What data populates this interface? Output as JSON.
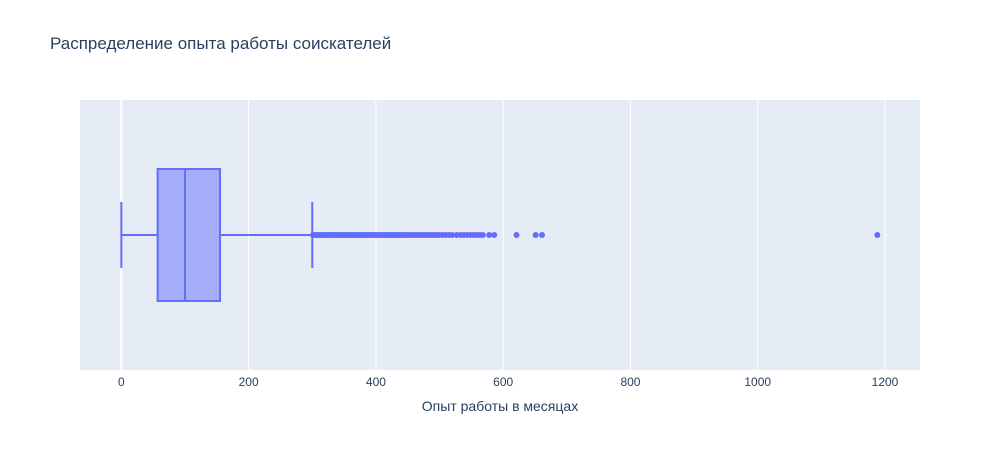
{
  "chart_data": {
    "type": "box",
    "title": "Распределение опыта работы соискателей",
    "xlabel": "Опыт работы в месяцах",
    "ylabel": "",
    "orientation": "horizontal",
    "xlim": [
      -65,
      1255
    ],
    "x_ticks": [
      0,
      200,
      400,
      600,
      800,
      1000,
      1200
    ],
    "x_tick_labels": [
      "0",
      "200",
      "400",
      "600",
      "800",
      "1000",
      "1200"
    ],
    "grid": true,
    "box": {
      "min": 0,
      "q1": 57,
      "median": 100,
      "q3": 155,
      "upper_fence": 300
    },
    "outliers": [
      301,
      304,
      307,
      310,
      313,
      316,
      319,
      322,
      325,
      328,
      331,
      334,
      337,
      340,
      343,
      346,
      349,
      352,
      355,
      358,
      361,
      364,
      367,
      370,
      373,
      376,
      379,
      382,
      385,
      388,
      391,
      394,
      397,
      400,
      403,
      406,
      409,
      412,
      415,
      418,
      421,
      424,
      427,
      430,
      433,
      436,
      439,
      442,
      445,
      448,
      452,
      456,
      460,
      464,
      468,
      472,
      476,
      480,
      484,
      488,
      492,
      496,
      500,
      505,
      510,
      515,
      520,
      527,
      533,
      538,
      543,
      548,
      553,
      558,
      563,
      568,
      578,
      586,
      621,
      651,
      661,
      1188
    ],
    "colors": {
      "box_fill": "#a4aef8",
      "box_line": "#636efa",
      "plot_bg": "#e5ecf6",
      "grid": "#ffffff",
      "text": "#2a3f5f"
    }
  }
}
